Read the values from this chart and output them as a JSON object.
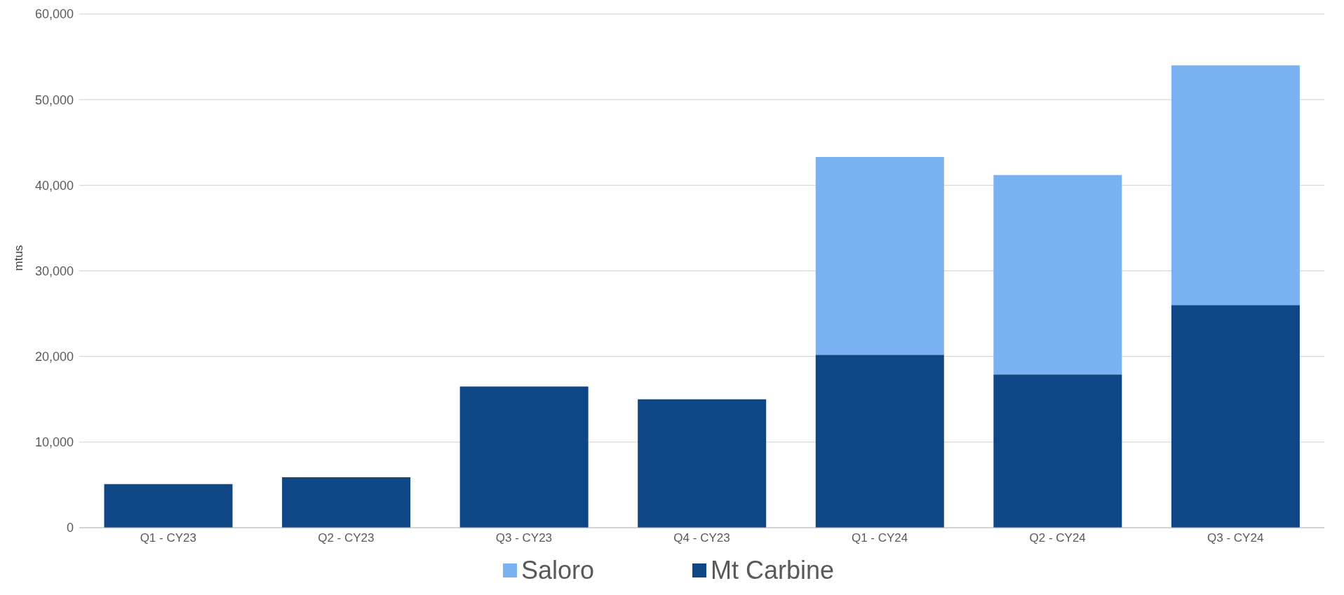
{
  "chart_data": {
    "type": "bar",
    "stacked": true,
    "ylabel": "mtus",
    "categories": [
      "Q1 - CY23",
      "Q2 - CY23",
      "Q3 - CY23",
      "Q4 - CY23",
      "Q1 - CY24",
      "Q2 - CY24",
      "Q3 - CY24"
    ],
    "series": [
      {
        "name": "Mt Carbine",
        "color": "#0e4686",
        "values": [
          5100,
          5900,
          16500,
          15000,
          20200,
          17900,
          26000
        ]
      },
      {
        "name": "Saloro",
        "color": "#7ab1f2",
        "values": [
          null,
          null,
          null,
          null,
          23100,
          23300,
          28000
        ]
      }
    ],
    "ylim": [
      0,
      60000
    ],
    "yticks": [
      0,
      {
        "value": 10000,
        "label": "10,000"
      },
      {
        "value": 20000,
        "label": "20,000"
      },
      {
        "value": 30000,
        "label": "30,000"
      },
      {
        "value": 40000,
        "label": "40,000"
      },
      {
        "value": 50000,
        "label": "50,000"
      },
      {
        "value": 60000,
        "label": "60,000"
      }
    ],
    "grid": "y",
    "legend": "bottom"
  }
}
